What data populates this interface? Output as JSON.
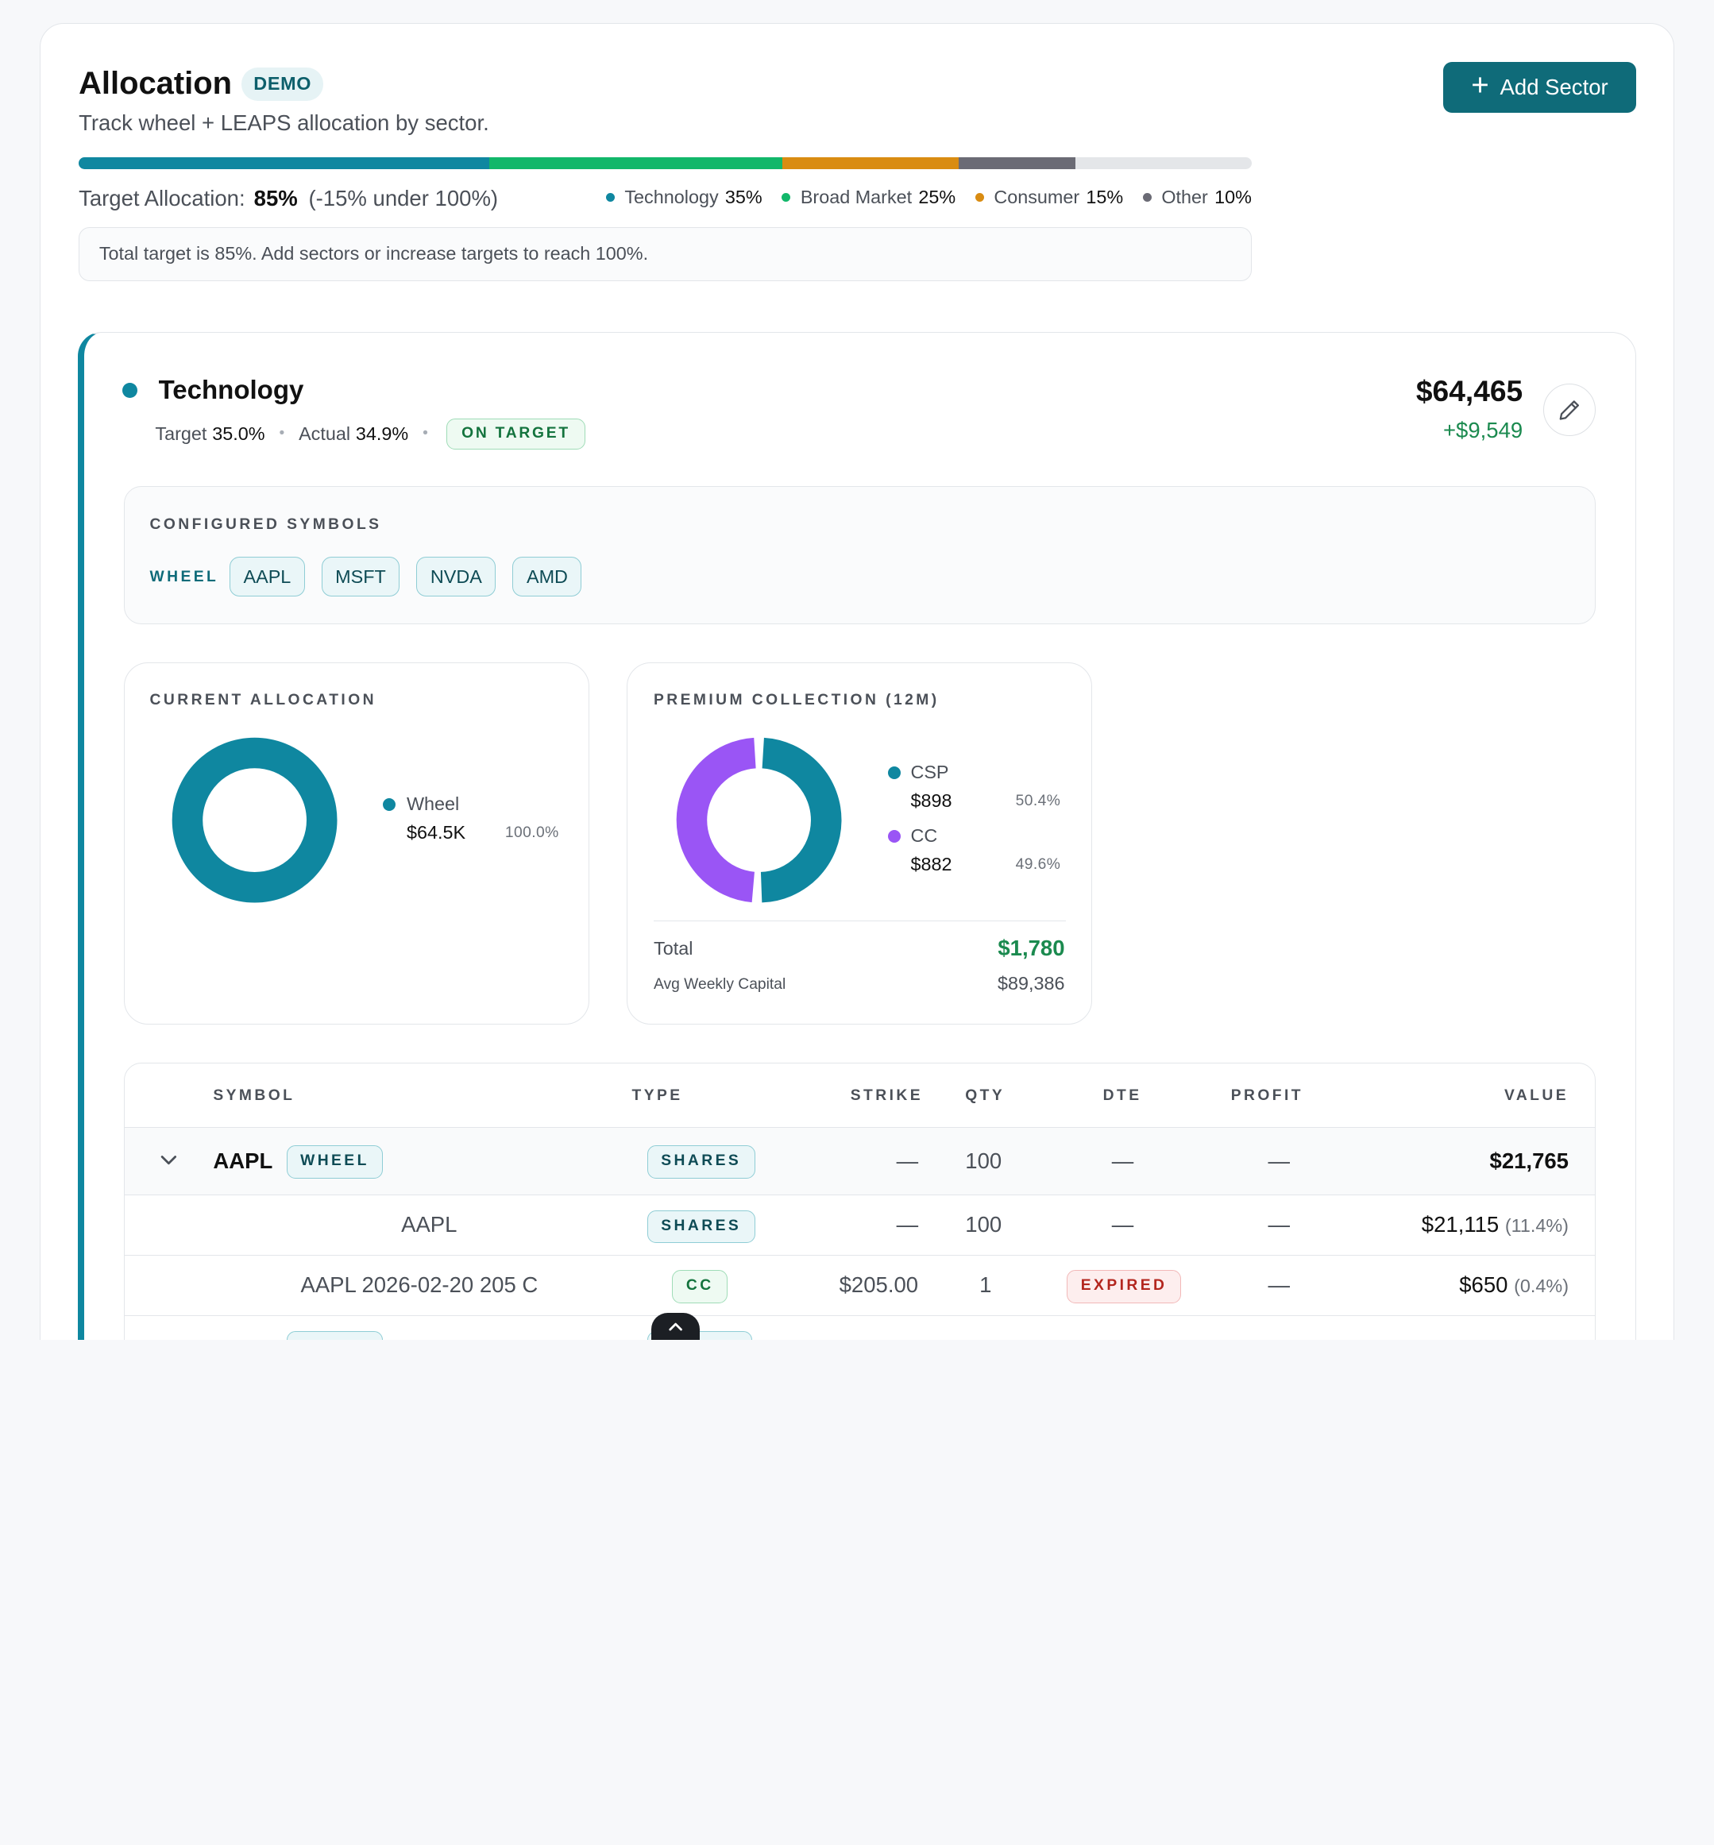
{
  "header": {
    "title": "Allocation",
    "badge": "DEMO",
    "subtitle": "Track wheel + LEAPS allocation by sector.",
    "add_button": "Add Sector"
  },
  "target": {
    "label": "Target Allocation:",
    "value": "85%",
    "delta": "(-15% under 100%)",
    "note": "Total target is 85%. Add sectors or increase targets to reach 100%.",
    "legend": [
      {
        "name": "Technology",
        "pct": "35%",
        "color": "#0f87a0"
      },
      {
        "name": "Broad Market",
        "pct": "25%",
        "color": "#12b76a"
      },
      {
        "name": "Consumer",
        "pct": "15%",
        "color": "#d98c12"
      },
      {
        "name": "Other",
        "pct": "10%",
        "color": "#6b6b75"
      }
    ]
  },
  "sector": {
    "name": "Technology",
    "target_label": "Target",
    "target": "35.0%",
    "actual_label": "Actual",
    "actual": "34.9%",
    "status": "ON TARGET",
    "total": "$64,465",
    "gain": "+$9,549",
    "config_title": "CONFIGURED SYMBOLS",
    "strategy": "WHEEL",
    "symbols": [
      "AAPL",
      "MSFT",
      "NVDA",
      "AMD"
    ],
    "current": {
      "title": "CURRENT ALLOCATION",
      "items": [
        {
          "name": "Wheel",
          "value": "$64.5K",
          "pct": "100.0%",
          "share": 1.0,
          "color": "#0f87a0"
        }
      ]
    },
    "premium": {
      "title": "PREMIUM COLLECTION (12M)",
      "items": [
        {
          "name": "CSP",
          "value": "$898",
          "pct": "50.4%",
          "share": 0.504,
          "color": "#0f87a0"
        },
        {
          "name": "CC",
          "value": "$882",
          "pct": "49.6%",
          "share": 0.496,
          "color": "#9a55f5"
        }
      ],
      "total_label": "Total",
      "total": "$1,780",
      "avg_label": "Avg Weekly Capital",
      "avg": "$89,386"
    }
  },
  "table": {
    "headers": [
      "SYMBOL",
      "TYPE",
      "STRIKE",
      "QTY",
      "DTE",
      "PROFIT",
      "VALUE"
    ],
    "group": {
      "symbol": "AAPL",
      "tag": "WHEEL",
      "type": "SHARES",
      "strike": "—",
      "qty": "100",
      "dte": "—",
      "profit": "—",
      "value": "$21,765"
    },
    "rows": [
      {
        "symbol": "AAPL",
        "type": "SHARES",
        "strike": "—",
        "qty": "100",
        "dte": "—",
        "profit": "—",
        "value": "$21,115",
        "pct": "(11.4%)"
      },
      {
        "symbol": "AAPL 2026-02-20 205 C",
        "type": "CC",
        "strike": "$205.00",
        "qty": "1",
        "dte": "EXPIRED",
        "profit": "—",
        "value": "$650",
        "pct": "(0.4%)"
      }
    ]
  }
}
